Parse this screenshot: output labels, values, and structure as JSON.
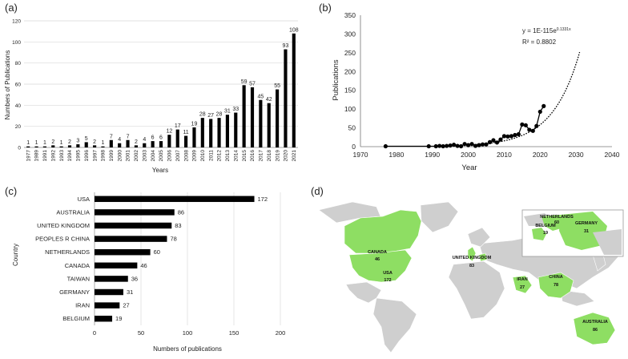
{
  "panel_labels": {
    "a": "(a)",
    "b": "(b)",
    "c": "(c)",
    "d": "(d)"
  },
  "colors": {
    "bar": "#000000",
    "grid": "#d9d9d9",
    "land": "#cfcfcf",
    "highlight": "#8ede63",
    "ocean": "#ffffff"
  },
  "chart_data": [
    {
      "id": "a",
      "type": "bar",
      "title": "",
      "xlabel": "Years",
      "ylabel": "Numbers of Publications",
      "ylim": [
        0,
        120
      ],
      "yticks": [
        0,
        20,
        40,
        60,
        80,
        100,
        120
      ],
      "grid": true,
      "categories": [
        "1977",
        "1989",
        "1991",
        "1992",
        "1993",
        "1994",
        "1995",
        "1996",
        "1997",
        "1998",
        "1999",
        "2000",
        "2001",
        "2002",
        "2003",
        "2004",
        "2005",
        "2006",
        "2007",
        "2008",
        "2009",
        "2010",
        "2011",
        "2012",
        "2013",
        "2014",
        "2015",
        "2016",
        "2017",
        "2018",
        "2019",
        "2020",
        "2021"
      ],
      "values": [
        1,
        1,
        1,
        2,
        1,
        2,
        3,
        5,
        2,
        1,
        7,
        4,
        7,
        2,
        4,
        6,
        6,
        12,
        17,
        11,
        19,
        28,
        27,
        28,
        31,
        33,
        59,
        57,
        45,
        42,
        55,
        93,
        108
      ]
    },
    {
      "id": "b",
      "type": "line",
      "xlabel": "Year",
      "ylabel": "Publications",
      "xlim": [
        1970,
        2040
      ],
      "ylim": [
        0,
        350
      ],
      "xticks": [
        1970,
        1980,
        1990,
        2000,
        2010,
        2020,
        2030,
        2040
      ],
      "yticks": [
        0,
        50,
        100,
        150,
        200,
        250,
        300,
        350
      ],
      "equation": "y = 1E-115e",
      "equation_exp": "0.1331x",
      "r2": "R² = 0.8802",
      "trendline": {
        "type": "exponential",
        "a": 1e-115,
        "b": 0.1331,
        "x_range": [
          2000,
          2031
        ]
      },
      "series": [
        {
          "name": "Publications",
          "x": [
            1977,
            1989,
            1991,
            1992,
            1993,
            1994,
            1995,
            1996,
            1997,
            1998,
            1999,
            2000,
            2001,
            2002,
            2003,
            2004,
            2005,
            2006,
            2007,
            2008,
            2009,
            2010,
            2011,
            2012,
            2013,
            2014,
            2015,
            2016,
            2017,
            2018,
            2019,
            2020,
            2021
          ],
          "y": [
            1,
            1,
            1,
            2,
            1,
            2,
            3,
            5,
            2,
            1,
            7,
            4,
            7,
            2,
            4,
            6,
            6,
            12,
            17,
            11,
            19,
            28,
            27,
            28,
            31,
            33,
            59,
            57,
            45,
            42,
            55,
            93,
            108
          ]
        }
      ]
    },
    {
      "id": "c",
      "type": "bar",
      "orientation": "horizontal",
      "xlabel": "Numbers of publications",
      "ylabel": "Country",
      "xlim": [
        0,
        200
      ],
      "xticks": [
        0,
        50,
        100,
        150,
        200
      ],
      "grid": true,
      "categories": [
        "USA",
        "AUSTRALIA",
        "UNITED KINGDOM",
        "PEOPLES R CHINA",
        "NETHERLANDS",
        "CANADA",
        "TAIWAN",
        "GERMANY",
        "IRAN",
        "BELGIUM"
      ],
      "values": [
        172,
        86,
        83,
        78,
        60,
        46,
        36,
        31,
        27,
        19
      ]
    }
  ],
  "map": {
    "labels": [
      {
        "name": "CANADA",
        "value": "46"
      },
      {
        "name": "USA",
        "value": "172"
      },
      {
        "name": "UNITED KINGDOM",
        "value": "83"
      },
      {
        "name": "IRAN",
        "value": "27"
      },
      {
        "name": "CHINA",
        "value": "78"
      },
      {
        "name": "AUSTRALIA",
        "value": "86"
      },
      {
        "name": "NETHERLANDS",
        "value": "60"
      },
      {
        "name": "BELGIUM",
        "value": "19"
      },
      {
        "name": "GERMANY",
        "value": "31"
      }
    ]
  }
}
